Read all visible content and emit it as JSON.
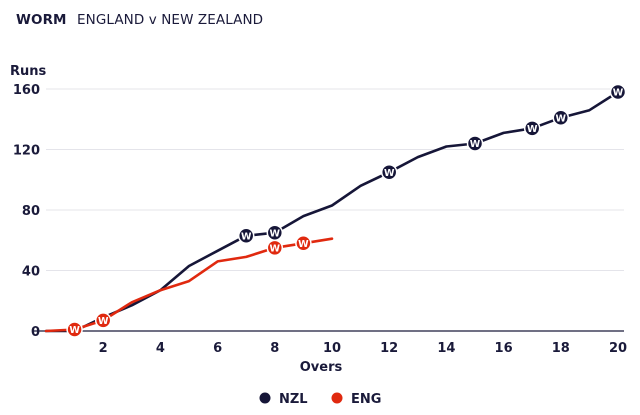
{
  "header": {
    "kind": "WORM",
    "match": "ENGLAND v NEW ZEALAND"
  },
  "chart_data": {
    "type": "line",
    "title": "WORM",
    "subtitle": "ENGLAND v NEW ZEALAND",
    "xlabel": "Overs",
    "ylabel": "Runs",
    "xlim": [
      0,
      20
    ],
    "ylim": [
      0,
      160
    ],
    "x_ticks": [
      2,
      4,
      6,
      8,
      10,
      12,
      14,
      16,
      18,
      20
    ],
    "y_ticks": [
      0,
      40,
      80,
      120,
      160
    ],
    "grid": true,
    "legend": "bottom-center",
    "wicket_marker_label": "W",
    "series": [
      {
        "name": "NZL",
        "color": "#161638",
        "x": [
          0,
          1,
          2,
          3,
          4,
          5,
          6,
          7,
          8,
          9,
          10,
          11,
          12,
          13,
          14,
          15,
          16,
          17,
          18,
          19,
          20
        ],
        "values": [
          0,
          0,
          9,
          17,
          27,
          43,
          53,
          63,
          65,
          76,
          83,
          96,
          105,
          115,
          122,
          124,
          131,
          134,
          141,
          146,
          158
        ],
        "wickets": [
          7,
          8,
          12,
          15,
          17,
          18,
          20
        ]
      },
      {
        "name": "ENG",
        "color": "#e0290f",
        "x": [
          0,
          1,
          2,
          3,
          4,
          5,
          6,
          7,
          8,
          9,
          10
        ],
        "values": [
          0,
          1,
          7,
          19,
          27,
          33,
          46,
          49,
          55,
          58,
          61
        ],
        "wickets": [
          1,
          2,
          8,
          9
        ]
      }
    ]
  }
}
